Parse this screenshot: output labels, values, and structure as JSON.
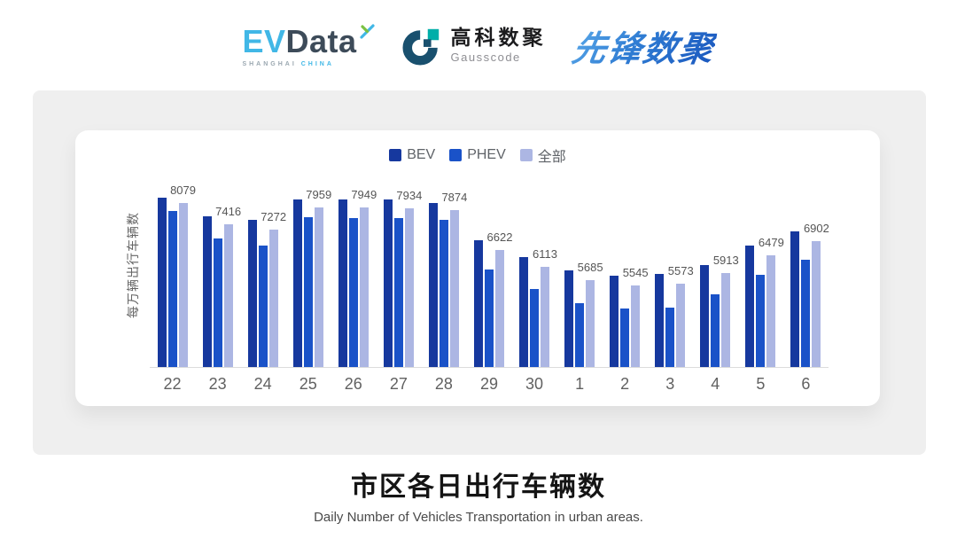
{
  "header": {
    "evdata": {
      "ev": "EV",
      "data": "Data",
      "tagline_left": "SHANGHAI",
      "tagline_right": "CHINA"
    },
    "gausscode": {
      "name_cn": "高科数聚",
      "name_en": "Gausscode"
    },
    "pioneer": {
      "name": "先锋数聚"
    }
  },
  "chart_data": {
    "type": "bar",
    "title": "市区各日出行车辆数",
    "subtitle": "Daily Number of Vehicles Transportation in urban areas.",
    "ylabel": "每万辆出行车辆数",
    "xlabel": "",
    "ylim": [
      3000,
      8500
    ],
    "grid": false,
    "legend_position": "top",
    "label_series": "全部",
    "categories": [
      "22",
      "23",
      "24",
      "25",
      "26",
      "27",
      "28",
      "29",
      "30",
      "1",
      "2",
      "3",
      "4",
      "5",
      "6"
    ],
    "series": [
      {
        "name": "BEV",
        "color": "#16389e",
        "values": [
          8250,
          7690,
          7575,
          8190,
          8190,
          8190,
          8080,
          6930,
          6400,
          6010,
          5840,
          5890,
          6175,
          6760,
          7210
        ]
      },
      {
        "name": "PHEV",
        "color": "#1a52c8",
        "values": [
          7855,
          6985,
          6760,
          7660,
          7630,
          7630,
          7575,
          6035,
          5420,
          4970,
          4830,
          4855,
          5250,
          5865,
          6340
        ]
      },
      {
        "name": "全部",
        "color": "#acb6e3",
        "values": [
          8079,
          7416,
          7272,
          7959,
          7949,
          7934,
          7874,
          6622,
          6113,
          5685,
          5545,
          5573,
          5913,
          6479,
          6902
        ]
      }
    ]
  },
  "footer": {
    "title": "市区各日出行车辆数",
    "subtitle": "Daily Number of Vehicles Transportation in urban areas."
  },
  "colors": {
    "bev": "#16389e",
    "phev": "#1a52c8",
    "all": "#acb6e3",
    "panel_bg": "#efefef",
    "card_bg": "#ffffff",
    "axis_line": "#dcdcdc",
    "value_label": "#555555",
    "axis_text": "#616161"
  }
}
